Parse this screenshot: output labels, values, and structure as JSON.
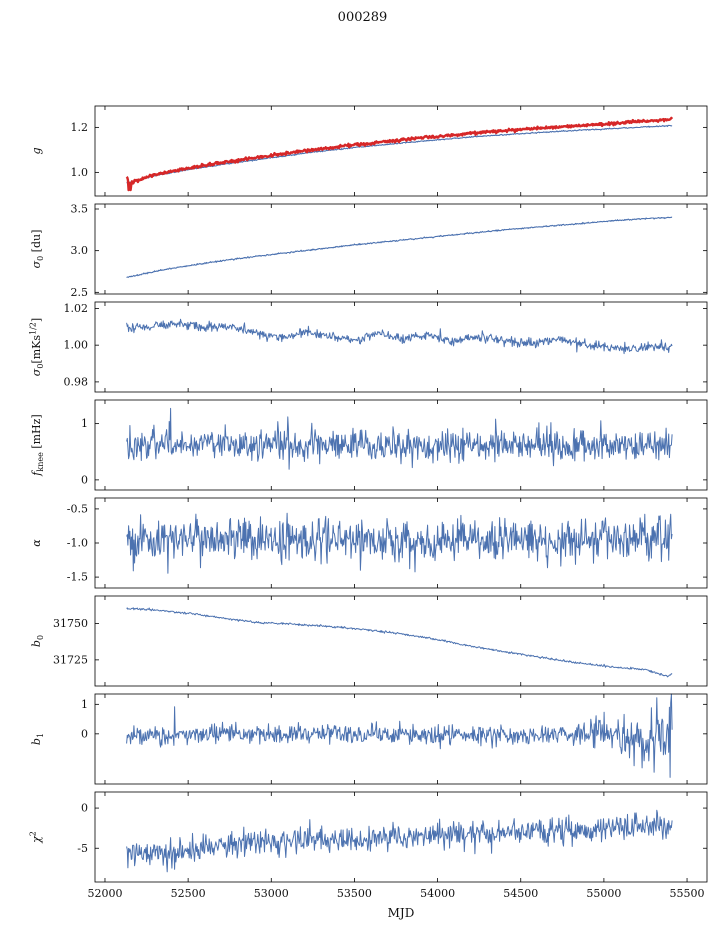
{
  "chart_data": {
    "type": "line",
    "title": "000289",
    "xlabel": "MJD",
    "x_range": [
      51940,
      55620
    ],
    "x_data_range": [
      52130,
      55410
    ],
    "x_ticks": [
      {
        "v": 52000,
        "label": "52000"
      },
      {
        "v": 52500,
        "label": "52500"
      },
      {
        "v": 53000,
        "label": "53000"
      },
      {
        "v": 53500,
        "label": "53500"
      },
      {
        "v": 54000,
        "label": "54000"
      },
      {
        "v": 54500,
        "label": "54500"
      },
      {
        "v": 55000,
        "label": "55000"
      },
      {
        "v": 55500,
        "label": "55500"
      }
    ],
    "colors": {
      "primary": "#4c72b0",
      "secondary": "#d62728",
      "axis": "#000000"
    },
    "noise_seed": 7,
    "legend": "none",
    "grid": false,
    "subplots": [
      {
        "id": "g",
        "ylabel_parts": [
          [
            "g",
            "i"
          ]
        ],
        "ylim": [
          0.895,
          1.295
        ],
        "y_ticks": [
          {
            "v": 1.0,
            "label": "1.0"
          },
          {
            "v": 1.2,
            "label": "1.2"
          }
        ],
        "series": [
          {
            "name": "g-blue",
            "color": "#4c72b0",
            "lw": 1.1,
            "noise": 0.0012,
            "anchors": [
              [
                52130,
                0.952
              ],
              [
                52300,
                0.985
              ],
              [
                52500,
                1.012
              ],
              [
                52750,
                1.04
              ],
              [
                53000,
                1.065
              ],
              [
                53250,
                1.09
              ],
              [
                53500,
                1.11
              ],
              [
                53750,
                1.128
              ],
              [
                54000,
                1.145
              ],
              [
                54250,
                1.16
              ],
              [
                54500,
                1.172
              ],
              [
                54750,
                1.183
              ],
              [
                55000,
                1.193
              ],
              [
                55200,
                1.2
              ],
              [
                55410,
                1.208
              ]
            ]
          },
          {
            "name": "g-red",
            "color": "#d62728",
            "lw": 2.4,
            "noise": 0.003,
            "noise_anchors": [
              [
                52130,
                0.022
              ],
              [
                52170,
                0.012
              ],
              [
                52210,
                0.003
              ],
              [
                55410,
                0.003
              ]
            ],
            "anchors": [
              [
                52130,
                0.948
              ],
              [
                52300,
                0.99
              ],
              [
                52500,
                1.018
              ],
              [
                52750,
                1.048
              ],
              [
                53000,
                1.075
              ],
              [
                53250,
                1.1
              ],
              [
                53500,
                1.122
              ],
              [
                53750,
                1.142
              ],
              [
                54000,
                1.16
              ],
              [
                54250,
                1.177
              ],
              [
                54500,
                1.19
              ],
              [
                54750,
                1.203
              ],
              [
                55000,
                1.215
              ],
              [
                55200,
                1.226
              ],
              [
                55410,
                1.236
              ]
            ]
          }
        ]
      },
      {
        "id": "sigma0-du",
        "ylabel_parts": [
          [
            "σ",
            "i"
          ],
          [
            "0",
            "sub"
          ],
          [
            " [du]",
            ""
          ]
        ],
        "ylim": [
          2.48,
          3.56
        ],
        "y_ticks": [
          {
            "v": 2.5,
            "label": "2.5"
          },
          {
            "v": 3.0,
            "label": "3.0"
          },
          {
            "v": 3.5,
            "label": "3.5"
          }
        ],
        "series": [
          {
            "name": "sigma0-du",
            "color": "#4c72b0",
            "lw": 1.1,
            "noise": 0.004,
            "anchors": [
              [
                52130,
                2.68
              ],
              [
                52350,
                2.77
              ],
              [
                52600,
                2.85
              ],
              [
                52900,
                2.93
              ],
              [
                53200,
                3.0
              ],
              [
                53500,
                3.07
              ],
              [
                53800,
                3.13
              ],
              [
                54100,
                3.19
              ],
              [
                54400,
                3.25
              ],
              [
                54700,
                3.3
              ],
              [
                55000,
                3.35
              ],
              [
                55200,
                3.38
              ],
              [
                55410,
                3.4
              ]
            ]
          }
        ]
      },
      {
        "id": "sigma0-mks",
        "ylabel_parts": [
          [
            "σ",
            "i"
          ],
          [
            "0",
            "sub"
          ],
          [
            "[mKs",
            ""
          ],
          [
            "1/2",
            "sup"
          ],
          [
            "]",
            ""
          ]
        ],
        "ylim": [
          0.9745,
          1.0235
        ],
        "y_ticks": [
          {
            "v": 0.98,
            "label": "0.98"
          },
          {
            "v": 1.0,
            "label": "1.00"
          },
          {
            "v": 1.02,
            "label": "1.02"
          }
        ],
        "series": [
          {
            "name": "sigma0-mks",
            "color": "#4c72b0",
            "lw": 1.0,
            "noise": 0.0013,
            "anchors": [
              [
                52130,
                1.0095
              ],
              [
                52300,
                1.01
              ],
              [
                52450,
                1.0125
              ],
              [
                52600,
                1.009
              ],
              [
                52750,
                1.0105
              ],
              [
                52900,
                1.007
              ],
              [
                53050,
                1.004
              ],
              [
                53200,
                1.0075
              ],
              [
                53350,
                1.005
              ],
              [
                53500,
                1.0025
              ],
              [
                53650,
                1.006
              ],
              [
                53800,
                1.004
              ],
              [
                53950,
                1.0055
              ],
              [
                54100,
                1.002
              ],
              [
                54250,
                1.0045
              ],
              [
                54400,
                1.003
              ],
              [
                54550,
                1.0005
              ],
              [
                54700,
                1.003
              ],
              [
                54850,
                1.0015
              ],
              [
                55000,
                0.999
              ],
              [
                55150,
                0.998
              ],
              [
                55300,
                0.9985
              ],
              [
                55410,
                1.0
              ]
            ]
          }
        ]
      },
      {
        "id": "fknee",
        "ylabel_parts": [
          [
            "f",
            "i"
          ],
          [
            "knee",
            "sub"
          ],
          [
            " [mHz]",
            ""
          ]
        ],
        "ylim": [
          -0.18,
          1.42
        ],
        "y_ticks": [
          {
            "v": 0,
            "label": "0"
          },
          {
            "v": 1,
            "label": "1"
          }
        ],
        "series": [
          {
            "name": "fknee",
            "color": "#4c72b0",
            "lw": 1.0,
            "noise": 0.135,
            "spikes": [
              [
                52395,
                1.27
              ],
              [
                53100,
                1.12
              ],
              [
                54350,
                1.08
              ],
              [
                54980,
                1.05
              ]
            ],
            "anchors": [
              [
                52130,
                0.62
              ],
              [
                55410,
                0.62
              ]
            ]
          }
        ]
      },
      {
        "id": "alpha",
        "ylabel_parts": [
          [
            "α",
            "i"
          ]
        ],
        "ylim": [
          -1.66,
          -0.34
        ],
        "y_ticks": [
          {
            "v": -1.5,
            "label": "-1.5"
          },
          {
            "v": -1.0,
            "label": "-1.0"
          },
          {
            "v": -0.5,
            "label": "-0.5"
          }
        ],
        "series": [
          {
            "name": "alpha",
            "color": "#4c72b0",
            "lw": 1.0,
            "noise": 0.155,
            "anchors": [
              [
                52130,
                -0.97
              ],
              [
                55410,
                -0.96
              ]
            ]
          }
        ]
      },
      {
        "id": "b0",
        "ylabel_parts": [
          [
            "b",
            "i"
          ],
          [
            "0",
            "sub"
          ]
        ],
        "ylim": [
          31707,
          31769
        ],
        "y_ticks": [
          {
            "v": 31725,
            "label": "31725"
          },
          {
            "v": 31750,
            "label": "31750"
          }
        ],
        "series": [
          {
            "name": "b0",
            "color": "#4c72b0",
            "lw": 1.0,
            "noise": 0.35,
            "anchors": [
              [
                52130,
                31760.5
              ],
              [
                52350,
                31759
              ],
              [
                52550,
                31756.5
              ],
              [
                52750,
                31753
              ],
              [
                52950,
                31750.5
              ],
              [
                53150,
                31749.5
              ],
              [
                53350,
                31748
              ],
              [
                53550,
                31746
              ],
              [
                53750,
                31743.5
              ],
              [
                53950,
                31740
              ],
              [
                54150,
                31735.5
              ],
              [
                54350,
                31731.5
              ],
              [
                54550,
                31728
              ],
              [
                54750,
                31724.5
              ],
              [
                54950,
                31721.5
              ],
              [
                55100,
                31719.5
              ],
              [
                55250,
                31718.5
              ],
              [
                55320,
                31716
              ],
              [
                55380,
                31713.5
              ],
              [
                55410,
                31715
              ]
            ]
          }
        ]
      },
      {
        "id": "b1",
        "ylabel_parts": [
          [
            "b",
            "i"
          ],
          [
            "1",
            "sub"
          ]
        ],
        "ylim": [
          -1.7,
          1.35
        ],
        "y_ticks": [
          {
            "v": 0,
            "label": "0"
          },
          {
            "v": 1,
            "label": "1"
          }
        ],
        "series": [
          {
            "name": "b1",
            "color": "#4c72b0",
            "lw": 1.0,
            "noise_anchors": [
              [
                52130,
                0.17
              ],
              [
                54800,
                0.17
              ],
              [
                55000,
                0.3
              ],
              [
                55200,
                0.45
              ],
              [
                55350,
                0.6
              ],
              [
                55410,
                0.75
              ]
            ],
            "spikes": [
              [
                52420,
                0.92
              ],
              [
                55300,
                -1.3
              ],
              [
                55400,
                1.05
              ]
            ],
            "anchors": [
              [
                52130,
                -0.05
              ],
              [
                53000,
                0.0
              ],
              [
                54000,
                -0.03
              ],
              [
                55000,
                -0.02
              ],
              [
                55410,
                0.0
              ]
            ]
          }
        ]
      },
      {
        "id": "chi2",
        "ylabel_parts": [
          [
            "χ",
            "i"
          ],
          [
            "2",
            "sup"
          ]
        ],
        "ylim": [
          -9.2,
          2.0
        ],
        "y_ticks": [
          {
            "v": -5,
            "label": "-5"
          },
          {
            "v": 0,
            "label": "0"
          }
        ],
        "series": [
          {
            "name": "chi2",
            "color": "#4c72b0",
            "lw": 1.0,
            "noise": 0.8,
            "anchors": [
              [
                52130,
                -5.2
              ],
              [
                52350,
                -5.7
              ],
              [
                52600,
                -5.0
              ],
              [
                52900,
                -4.3
              ],
              [
                53200,
                -4.0
              ],
              [
                53600,
                -3.7
              ],
              [
                54000,
                -3.3
              ],
              [
                54400,
                -3.1
              ],
              [
                54800,
                -2.8
              ],
              [
                55100,
                -2.4
              ],
              [
                55410,
                -2.0
              ]
            ]
          }
        ]
      }
    ]
  }
}
